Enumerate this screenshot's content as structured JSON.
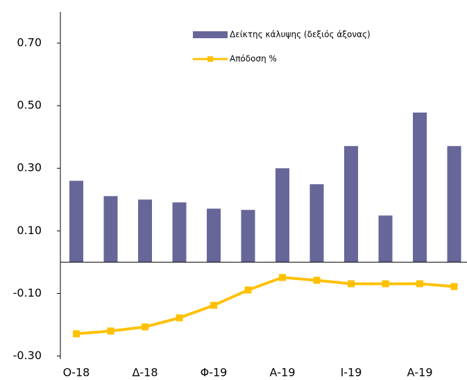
{
  "chart_data": {
    "type": "bar_line",
    "categories": [
      "Ο-18",
      null,
      "Δ-18",
      null,
      "Φ-19",
      null,
      "Α-19",
      null,
      "Ι-19",
      null,
      "Α-19",
      null
    ],
    "series": [
      {
        "name": "Δείκτης κάλυψης (δεξιός άξονας)",
        "type": "bar",
        "color": "#666699",
        "values": [
          0.26,
          0.211,
          0.2,
          0.191,
          0.171,
          0.167,
          0.3,
          0.249,
          0.371,
          0.149,
          0.478,
          0.371
        ]
      },
      {
        "name": "Απόδοση %",
        "type": "line",
        "color": "#ffc000",
        "values": [
          -0.229,
          -0.22,
          -0.207,
          -0.178,
          -0.138,
          -0.089,
          -0.049,
          -0.058,
          -0.069,
          -0.069,
          -0.069,
          -0.078
        ]
      }
    ],
    "ylim": [
      -0.31,
      0.8
    ],
    "yticks": [
      {
        "value": 0.7,
        "label": "0.70"
      },
      {
        "value": 0.5,
        "label": "0.50"
      },
      {
        "value": 0.3,
        "label": "0.30"
      },
      {
        "value": 0.1,
        "label": "0.10"
      },
      {
        "value": -0.1,
        "label": "-0.10"
      },
      {
        "value": -0.3,
        "label": "-0.30"
      }
    ],
    "legend": "top"
  }
}
